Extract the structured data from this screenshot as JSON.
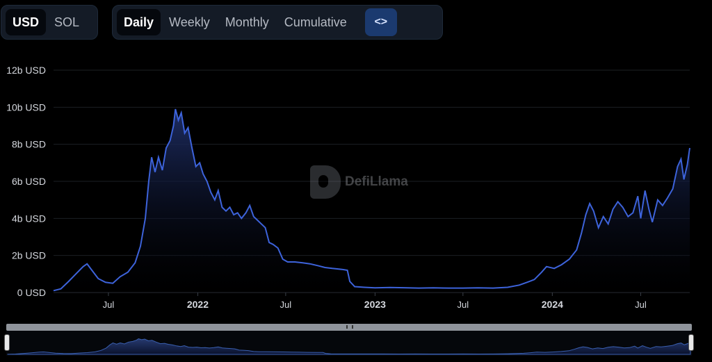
{
  "currency_toggle": {
    "options": [
      "USD",
      "SOL"
    ],
    "selected": "USD"
  },
  "period_toggle": {
    "options": [
      "Daily",
      "Weekly",
      "Monthly",
      "Cumulative"
    ],
    "selected": "Daily",
    "embed_label": "<>"
  },
  "watermark": {
    "text": "DefiLlama"
  },
  "colors": {
    "line": "#3d63db",
    "area_top": "#1f2f68",
    "area_bottom": "#000000",
    "grid": "#1c1f25",
    "toggle_bg": "#141b26",
    "embed_bg": "#1b3a6f"
  },
  "chart_data": {
    "type": "area",
    "ylim": [
      0,
      12
    ],
    "yticks": [
      0,
      2,
      4,
      6,
      8,
      10,
      12
    ],
    "ytick_labels": [
      "0 USD",
      "2b USD",
      "4b USD",
      "6b USD",
      "8b USD",
      "10b USD",
      "12b USD"
    ],
    "xlim": [
      "2021-03-10",
      "2024-10-10"
    ],
    "xticks": [
      {
        "date": "2021-07-01",
        "label": "Jul",
        "year": false
      },
      {
        "date": "2022-01-01",
        "label": "2022",
        "year": true
      },
      {
        "date": "2022-07-01",
        "label": "Jul",
        "year": false
      },
      {
        "date": "2023-01-01",
        "label": "2023",
        "year": true
      },
      {
        "date": "2023-07-01",
        "label": "Jul",
        "year": false
      },
      {
        "date": "2024-01-01",
        "label": "2024",
        "year": true
      },
      {
        "date": "2024-07-01",
        "label": "Jul",
        "year": false
      }
    ],
    "grid": true,
    "series": [
      {
        "values": [
          [
            "2021-03-10",
            0.1
          ],
          [
            "2021-03-25",
            0.2
          ],
          [
            "2021-04-10",
            0.6
          ],
          [
            "2021-04-25",
            1.0
          ],
          [
            "2021-05-10",
            1.4
          ],
          [
            "2021-05-18",
            1.55
          ],
          [
            "2021-05-28",
            1.2
          ],
          [
            "2021-06-10",
            0.75
          ],
          [
            "2021-06-25",
            0.55
          ],
          [
            "2021-07-10",
            0.5
          ],
          [
            "2021-07-25",
            0.85
          ],
          [
            "2021-08-10",
            1.1
          ],
          [
            "2021-08-25",
            1.6
          ],
          [
            "2021-09-05",
            2.5
          ],
          [
            "2021-09-15",
            4.0
          ],
          [
            "2021-09-22",
            6.0
          ],
          [
            "2021-09-28",
            7.3
          ],
          [
            "2021-10-05",
            6.5
          ],
          [
            "2021-10-12",
            7.3
          ],
          [
            "2021-10-20",
            6.6
          ],
          [
            "2021-10-28",
            7.8
          ],
          [
            "2021-11-05",
            8.2
          ],
          [
            "2021-11-12",
            9.0
          ],
          [
            "2021-11-16",
            9.9
          ],
          [
            "2021-11-22",
            9.3
          ],
          [
            "2021-11-28",
            9.7
          ],
          [
            "2021-12-05",
            8.6
          ],
          [
            "2021-12-12",
            8.9
          ],
          [
            "2021-12-20",
            7.8
          ],
          [
            "2021-12-28",
            6.8
          ],
          [
            "2022-01-05",
            7.0
          ],
          [
            "2022-01-12",
            6.4
          ],
          [
            "2022-01-20",
            6.0
          ],
          [
            "2022-01-28",
            5.4
          ],
          [
            "2022-02-05",
            5.0
          ],
          [
            "2022-02-12",
            5.5
          ],
          [
            "2022-02-20",
            4.6
          ],
          [
            "2022-02-28",
            4.4
          ],
          [
            "2022-03-08",
            4.6
          ],
          [
            "2022-03-16",
            4.2
          ],
          [
            "2022-03-24",
            4.3
          ],
          [
            "2022-04-01",
            4.0
          ],
          [
            "2022-04-10",
            4.3
          ],
          [
            "2022-04-18",
            4.7
          ],
          [
            "2022-04-26",
            4.1
          ],
          [
            "2022-05-04",
            3.9
          ],
          [
            "2022-05-12",
            3.7
          ],
          [
            "2022-05-20",
            3.5
          ],
          [
            "2022-05-28",
            2.7
          ],
          [
            "2022-06-05",
            2.6
          ],
          [
            "2022-06-15",
            2.4
          ],
          [
            "2022-06-25",
            1.8
          ],
          [
            "2022-07-05",
            1.65
          ],
          [
            "2022-07-20",
            1.65
          ],
          [
            "2022-08-05",
            1.6
          ],
          [
            "2022-08-20",
            1.55
          ],
          [
            "2022-09-05",
            1.45
          ],
          [
            "2022-09-20",
            1.35
          ],
          [
            "2022-10-05",
            1.3
          ],
          [
            "2022-10-25",
            1.25
          ],
          [
            "2022-11-05",
            1.2
          ],
          [
            "2022-11-10",
            0.6
          ],
          [
            "2022-11-20",
            0.32
          ],
          [
            "2022-12-10",
            0.28
          ],
          [
            "2023-01-01",
            0.25
          ],
          [
            "2023-02-01",
            0.27
          ],
          [
            "2023-03-01",
            0.26
          ],
          [
            "2023-04-01",
            0.24
          ],
          [
            "2023-05-01",
            0.25
          ],
          [
            "2023-06-01",
            0.24
          ],
          [
            "2023-07-01",
            0.24
          ],
          [
            "2023-08-01",
            0.25
          ],
          [
            "2023-09-01",
            0.24
          ],
          [
            "2023-10-01",
            0.28
          ],
          [
            "2023-10-25",
            0.4
          ],
          [
            "2023-11-10",
            0.55
          ],
          [
            "2023-11-25",
            0.7
          ],
          [
            "2023-12-10",
            1.1
          ],
          [
            "2023-12-20",
            1.4
          ],
          [
            "2024-01-05",
            1.3
          ],
          [
            "2024-01-20",
            1.5
          ],
          [
            "2024-02-05",
            1.8
          ],
          [
            "2024-02-20",
            2.3
          ],
          [
            "2024-03-01",
            3.2
          ],
          [
            "2024-03-10",
            4.2
          ],
          [
            "2024-03-18",
            4.8
          ],
          [
            "2024-03-26",
            4.4
          ],
          [
            "2024-04-05",
            3.5
          ],
          [
            "2024-04-15",
            4.1
          ],
          [
            "2024-04-25",
            3.7
          ],
          [
            "2024-05-05",
            4.5
          ],
          [
            "2024-05-15",
            4.9
          ],
          [
            "2024-05-25",
            4.6
          ],
          [
            "2024-06-05",
            4.1
          ],
          [
            "2024-06-15",
            4.3
          ],
          [
            "2024-06-25",
            5.2
          ],
          [
            "2024-07-01",
            4.0
          ],
          [
            "2024-07-10",
            5.5
          ],
          [
            "2024-07-18",
            4.5
          ],
          [
            "2024-07-25",
            3.8
          ],
          [
            "2024-08-05",
            5.0
          ],
          [
            "2024-08-15",
            4.7
          ],
          [
            "2024-08-25",
            5.1
          ],
          [
            "2024-09-05",
            5.6
          ],
          [
            "2024-09-15",
            6.8
          ],
          [
            "2024-09-22",
            7.2
          ],
          [
            "2024-09-28",
            6.1
          ],
          [
            "2024-10-05",
            6.9
          ],
          [
            "2024-10-10",
            7.8
          ]
        ]
      }
    ]
  }
}
